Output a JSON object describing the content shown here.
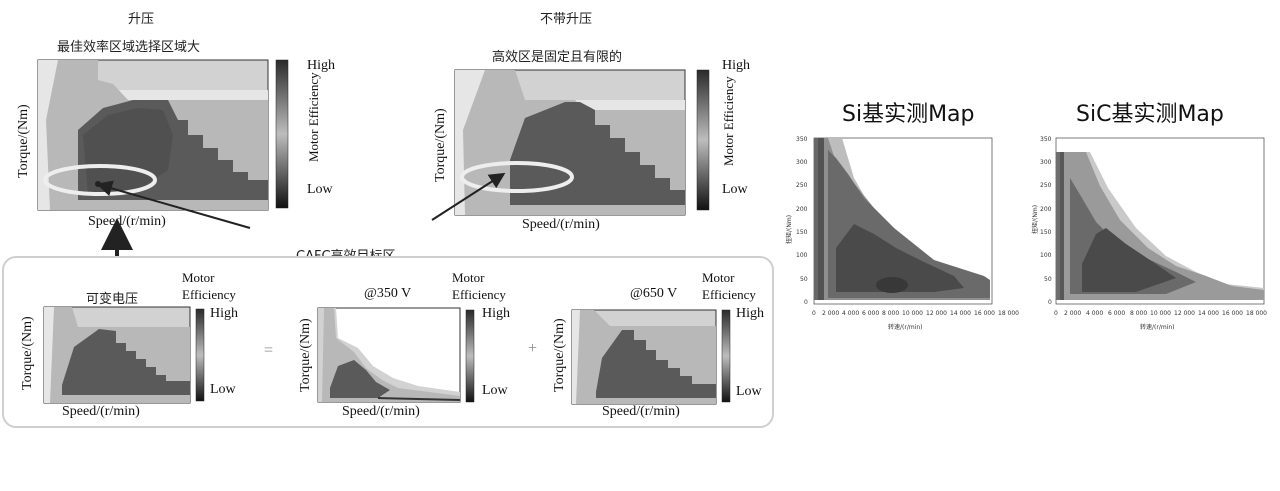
{
  "left_diagram": {
    "boost": {
      "title": "升压",
      "subtitle": "最佳效率区域选择区域大",
      "ylabel": "Torque/(Nm)",
      "xlabel": "Speed/(r/min)",
      "legend_title": "Motor Efficiency",
      "legend_high": "High",
      "legend_low": "Low"
    },
    "no_boost": {
      "title": "不带升压",
      "subtitle": "高效区是固定且有限的",
      "ylabel": "Torque/(Nm)",
      "xlabel": "Speed/(r/min)",
      "legend_title": "Motor Efficiency",
      "legend_high": "High",
      "legend_low": "Low"
    },
    "target_label": "CAFC高效目标区",
    "bottom": {
      "variable_voltage": {
        "caption": "可变电压",
        "ylabel": "Torque/(Nm)",
        "xlabel": "Speed/(r/min)",
        "legend_title_1": "Motor",
        "legend_title_2": "Efficiency",
        "legend_high": "High",
        "legend_low": "Low"
      },
      "equals": "=",
      "v350": {
        "caption": "@350 V",
        "ylabel": "Torque/(Nm)",
        "xlabel": "Speed/(r/min)",
        "legend_title_1": "Motor",
        "legend_title_2": "Efficiency",
        "legend_high": "High",
        "legend_low": "Low"
      },
      "plus": "+",
      "v650": {
        "caption": "@650 V",
        "ylabel": "Torque/(Nm)",
        "xlabel": "Speed/(r/min)",
        "legend_title_1": "Motor",
        "legend_title_2": "Efficiency",
        "legend_high": "High",
        "legend_low": "Low"
      }
    }
  },
  "right_maps": {
    "si": {
      "title": "Si基实测Map",
      "ylabel": "扭矩/(Nm)",
      "xlabel": "转速/(r/min)",
      "yticks": [
        "350",
        "300",
        "250",
        "200",
        "150",
        "100",
        "50",
        "0"
      ],
      "xticks": [
        "0",
        "2 000",
        "4 000",
        "6 000",
        "8 000",
        "10 000",
        "12 000",
        "14 000",
        "16 000",
        "18 000"
      ]
    },
    "sic": {
      "title": "SiC基实测Map",
      "ylabel": "扭矩/(Nm)",
      "xlabel": "转速/(r/min)",
      "yticks": [
        "350",
        "300",
        "250",
        "200",
        "150",
        "100",
        "50",
        "0"
      ],
      "xticks": [
        "0",
        "2 000",
        "4 000",
        "6 000",
        "8 000",
        "10 000",
        "12 000",
        "14 000",
        "16 000",
        "18 000"
      ]
    }
  },
  "colors": {
    "light": "#d2d2d2",
    "mid": "#a9a9a9",
    "dark": "#5a5a5a",
    "darker": "#3c3c3c",
    "ellipse": "#eeeeee"
  }
}
